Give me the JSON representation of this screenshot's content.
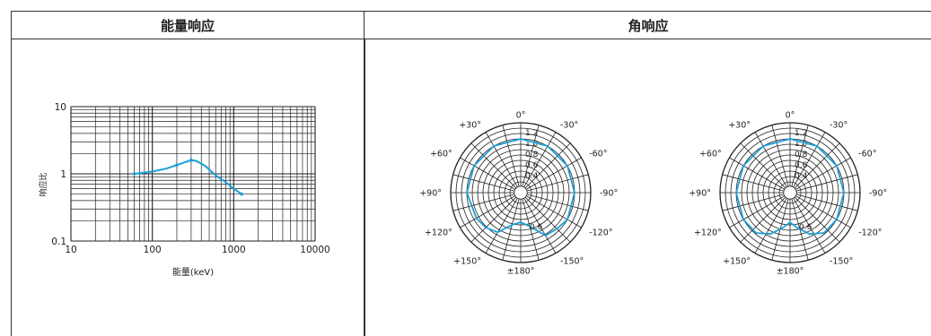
{
  "headers": {
    "energy": "能量响应",
    "angular": "角响应"
  },
  "chart_data": [
    {
      "type": "line",
      "title": "能量响应",
      "xlabel": "能量(keV)",
      "ylabel": "响应比",
      "xscale": "log",
      "yscale": "log",
      "xlim": [
        10,
        10000
      ],
      "ylim": [
        0.1,
        10
      ],
      "x_ticks": [
        "10",
        "100",
        "1000",
        "10000"
      ],
      "y_ticks": [
        "0.1",
        "1",
        "10"
      ],
      "grid": true,
      "series": [
        {
          "color": "#1aa0d8",
          "x": [
            60,
            100,
            150,
            200,
            300,
            350,
            450,
            600,
            800,
            1000,
            1250
          ],
          "y": [
            1.0,
            1.08,
            1.2,
            1.35,
            1.6,
            1.55,
            1.3,
            0.95,
            0.75,
            0.6,
            0.5
          ]
        }
      ]
    },
    {
      "type": "polar",
      "radial_ticks": [
        "0.4",
        "0.6",
        "0.8",
        "1.0",
        "1.2"
      ],
      "angle_labels": [
        "0°",
        "-30°",
        "-60°",
        "-90°",
        "-120°",
        "-150°",
        "±180°",
        "+150°",
        "+120°",
        "+90°",
        "+60°",
        "+30°"
      ],
      "series": [
        {
          "color": "#1aa0d8",
          "angles": [
            0,
            30,
            60,
            90,
            120,
            135,
            150,
            165,
            180,
            195,
            210,
            225,
            240,
            270,
            300,
            330
          ],
          "values": [
            1.0,
            1.0,
            1.0,
            1.0,
            1.0,
            0.95,
            0.92,
            0.65,
            0.55,
            0.62,
            0.85,
            0.92,
            0.95,
            1.0,
            1.0,
            1.0
          ]
        }
      ],
      "bottom_label": "0.6"
    },
    {
      "type": "polar",
      "radial_ticks": [
        "0.4",
        "0.6",
        "0.8",
        "1.0",
        "1.2"
      ],
      "angle_labels": [
        "0°",
        "-30°",
        "-60°",
        "-90°",
        "-120°",
        "-150°",
        "±180°",
        "+150°",
        "+120°",
        "+90°",
        "+60°",
        "+30°"
      ],
      "series": [
        {
          "color": "#1aa0d8",
          "angles": [
            0,
            30,
            60,
            90,
            120,
            140,
            155,
            170,
            180,
            190,
            205,
            220,
            240,
            270,
            300,
            330
          ],
          "values": [
            1.0,
            1.0,
            1.0,
            1.0,
            1.0,
            0.98,
            0.85,
            0.65,
            0.55,
            0.65,
            0.85,
            0.98,
            1.0,
            1.0,
            1.0,
            1.0
          ]
        }
      ],
      "bottom_label": "0.6"
    }
  ]
}
